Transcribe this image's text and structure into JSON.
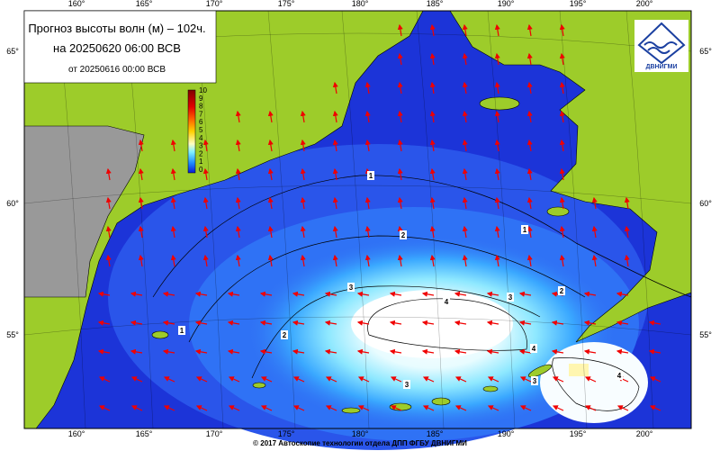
{
  "title": {
    "line1": "Прогноз высоты волн (м) – 102ч.",
    "line2": "на 20250620 06:00 ВСВ",
    "line3": "от 20250616 00:00 ВСВ"
  },
  "colorbar": {
    "ticks": [
      10,
      9,
      8,
      7,
      6,
      5,
      4,
      3,
      2,
      1,
      0
    ]
  },
  "lon_labels": [
    "160°",
    "165°",
    "170°",
    "175°",
    "180°",
    "185°",
    "190°",
    "195°",
    "200°"
  ],
  "lat_labels": [
    "65°",
    "60°",
    "55°"
  ],
  "contour_labels": [
    "1",
    "1",
    "1",
    "2",
    "2",
    "2",
    "3",
    "3",
    "3",
    "3",
    "4",
    "4",
    "4"
  ],
  "logo": "ДВНИГМИ",
  "footer": "© 2017 Автоскопие технологии отдела ДПП ФГБУ ДВНИГМИ"
}
